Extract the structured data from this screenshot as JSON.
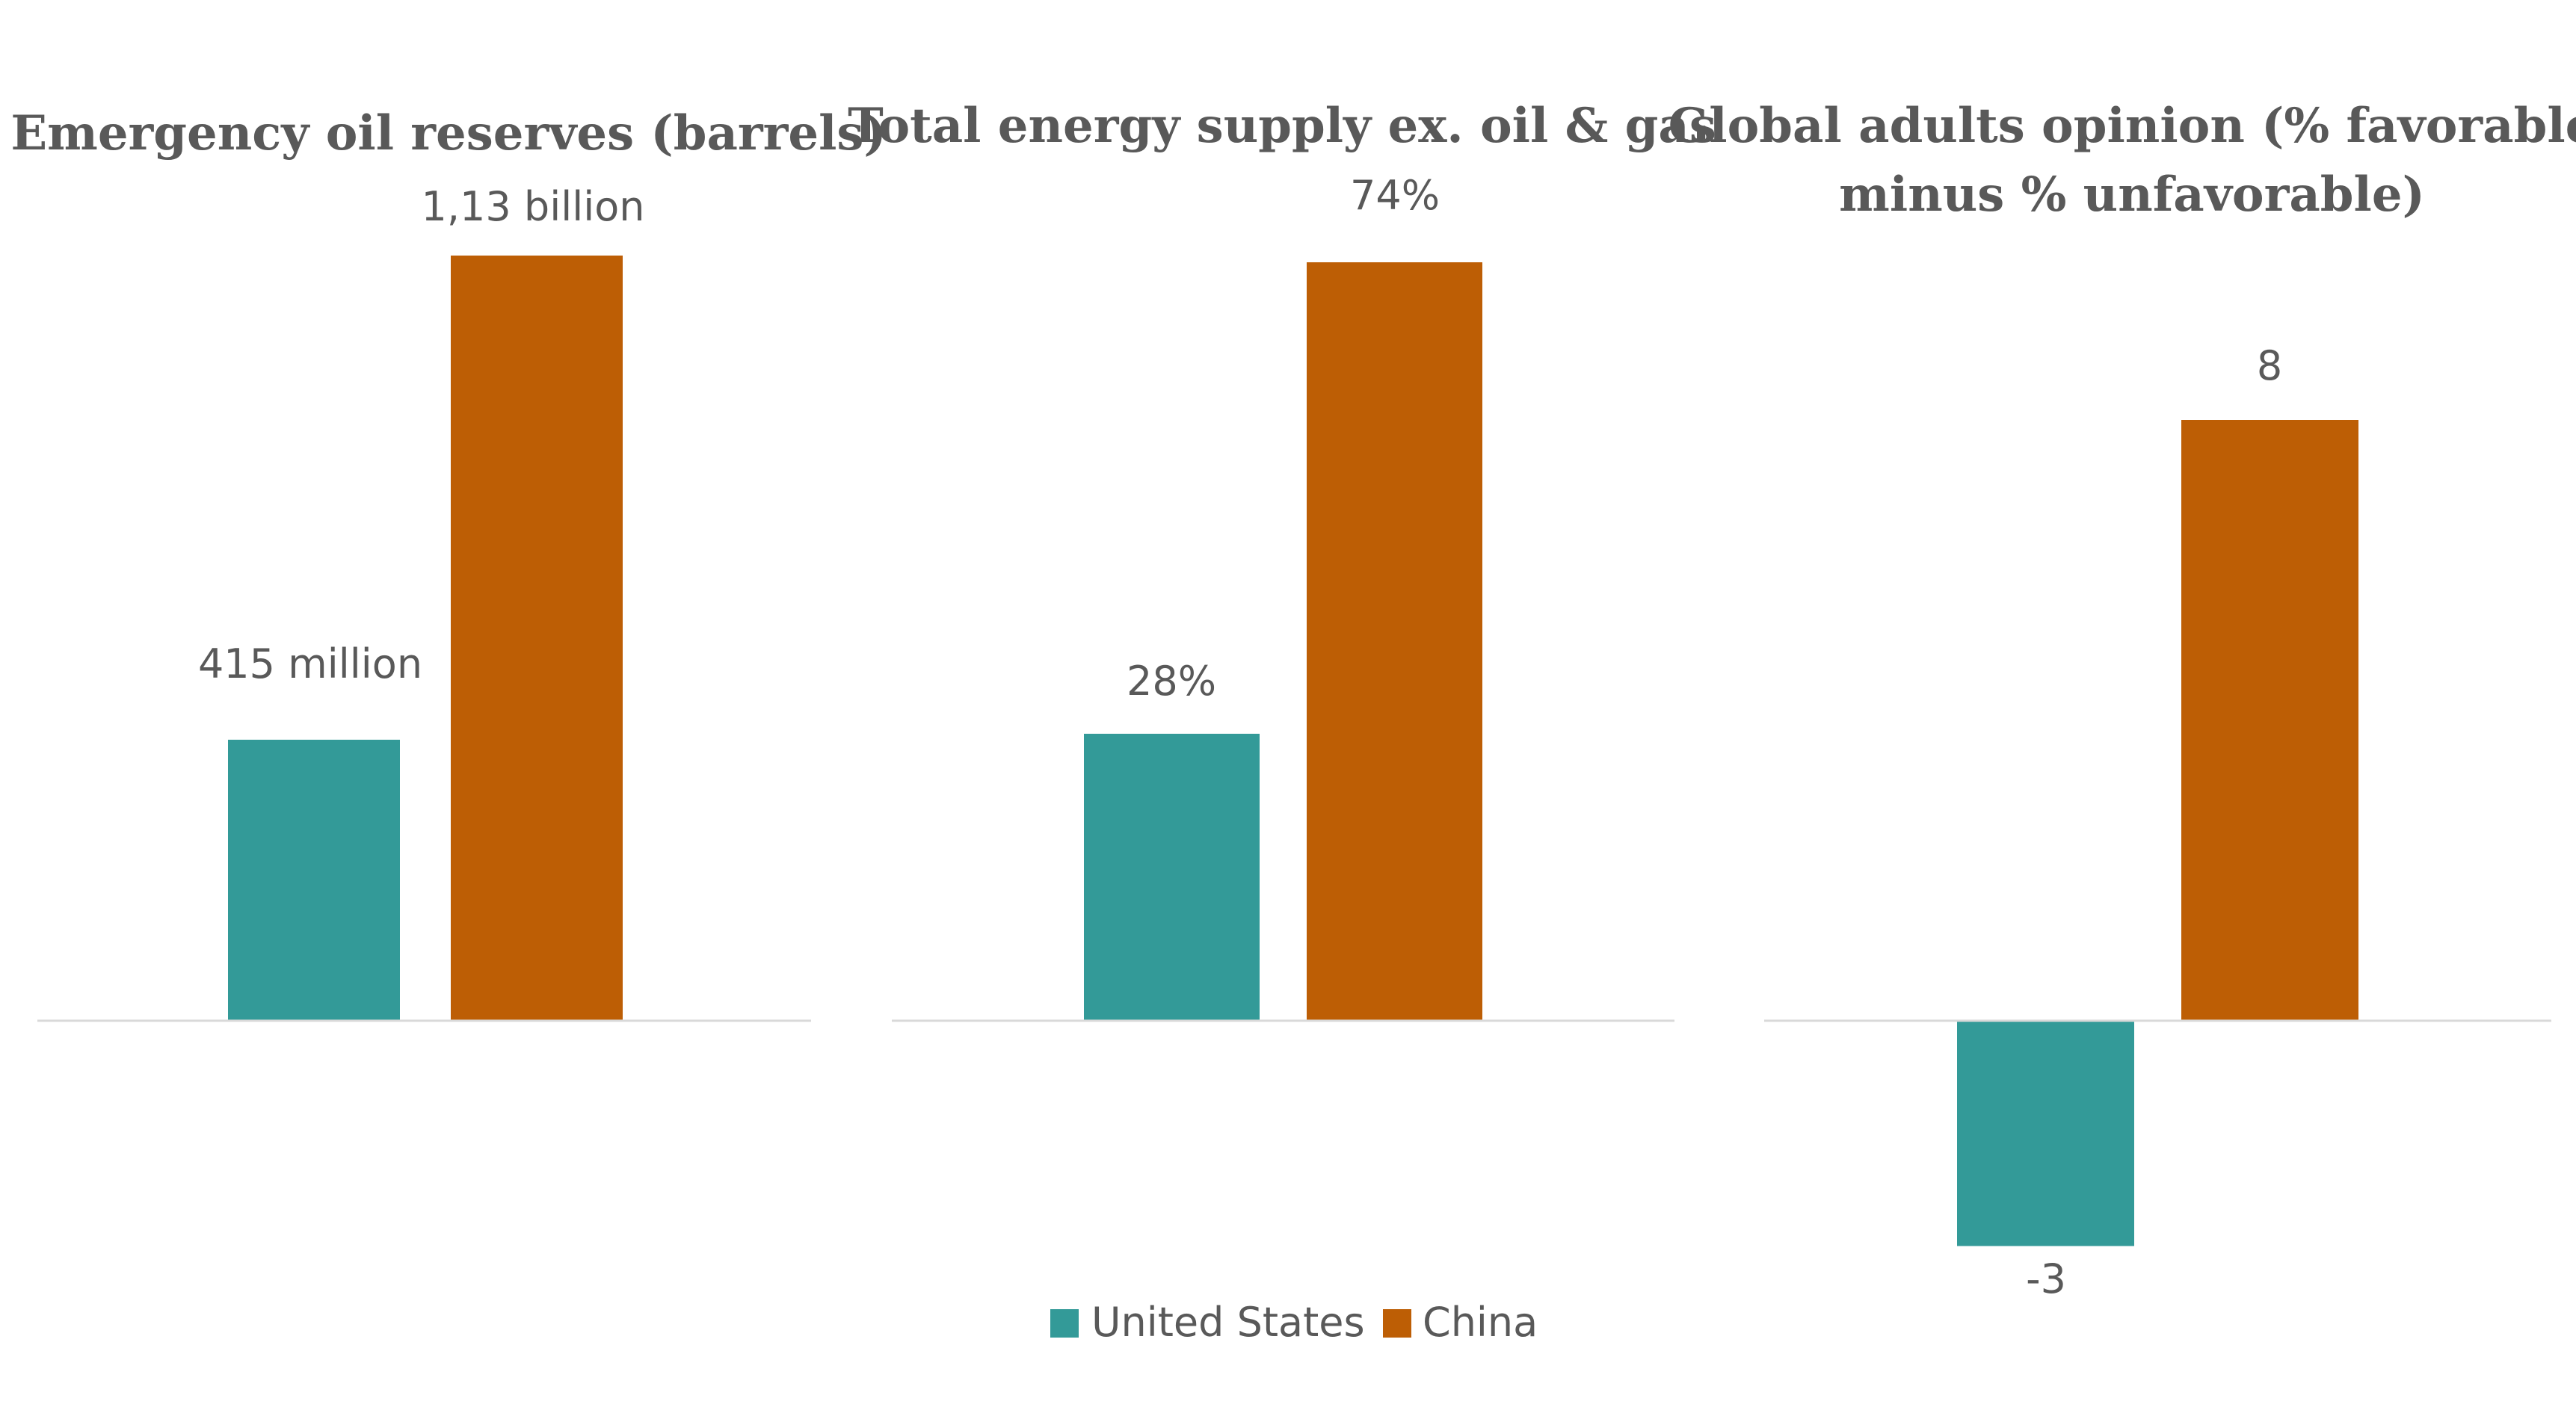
{
  "colors": {
    "United States": "#339a98",
    "China": "#bd5e05",
    "text": "#595959",
    "baseline": "#d9d9d9"
  },
  "legend": {
    "position": "bottom-center",
    "entries": [
      "United States",
      "China"
    ]
  },
  "chart_data": [
    {
      "type": "bar",
      "title": "Emergency oil reserves (barrels)",
      "title_lines": [
        "Emergency oil reserves (barrels)"
      ],
      "categories": [
        "United States",
        "China"
      ],
      "values": [
        415,
        1130
      ],
      "unit": "million barrels",
      "data_labels": [
        "415 million",
        "1,13 billion"
      ],
      "xlabel": "",
      "ylabel": "",
      "grid": false
    },
    {
      "type": "bar",
      "title": "Total energy supply ex. oil & gas",
      "title_lines": [
        "Total energy supply ex. oil & gas"
      ],
      "categories": [
        "United States",
        "China"
      ],
      "values": [
        28,
        74
      ],
      "unit": "%",
      "data_labels": [
        "28%",
        "74%"
      ],
      "xlabel": "",
      "ylabel": "",
      "grid": false
    },
    {
      "type": "bar",
      "title": "Global adults opinion (% favorable minus % unfavorable)",
      "title_lines": [
        "Global adults opinion (% favorable",
        "minus % unfavorable)"
      ],
      "categories": [
        "United States",
        "China"
      ],
      "values": [
        -3,
        8
      ],
      "unit": "",
      "data_labels": [
        "-3",
        "8"
      ],
      "xlabel": "",
      "ylabel": "",
      "grid": false
    }
  ]
}
